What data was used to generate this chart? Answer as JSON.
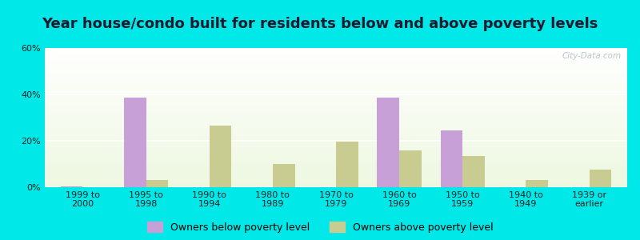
{
  "title": "Year house/condo built for residents below and above poverty levels",
  "categories": [
    "1999 to\n2000",
    "1995 to\n1998",
    "1990 to\n1994",
    "1980 to\n1989",
    "1970 to\n1979",
    "1960 to\n1969",
    "1950 to\n1959",
    "1940 to\n1949",
    "1939 or\nearlier"
  ],
  "below_poverty": [
    0.5,
    38.5,
    0.0,
    0.0,
    0.0,
    38.5,
    24.5,
    0.0,
    0.0
  ],
  "above_poverty": [
    0.0,
    3.0,
    26.5,
    10.0,
    19.5,
    16.0,
    13.5,
    3.0,
    7.5
  ],
  "below_color": "#c8a0d8",
  "above_color": "#c8cc90",
  "ylim": [
    0,
    60
  ],
  "yticks": [
    0,
    20,
    40,
    60
  ],
  "ytick_labels": [
    "0%",
    "20%",
    "40%",
    "60%"
  ],
  "background_color": "#00e8e8",
  "bar_width": 0.35,
  "legend_below_label": "Owners below poverty level",
  "legend_above_label": "Owners above poverty level",
  "title_fontsize": 13,
  "tick_fontsize": 8.0,
  "legend_fontsize": 9
}
